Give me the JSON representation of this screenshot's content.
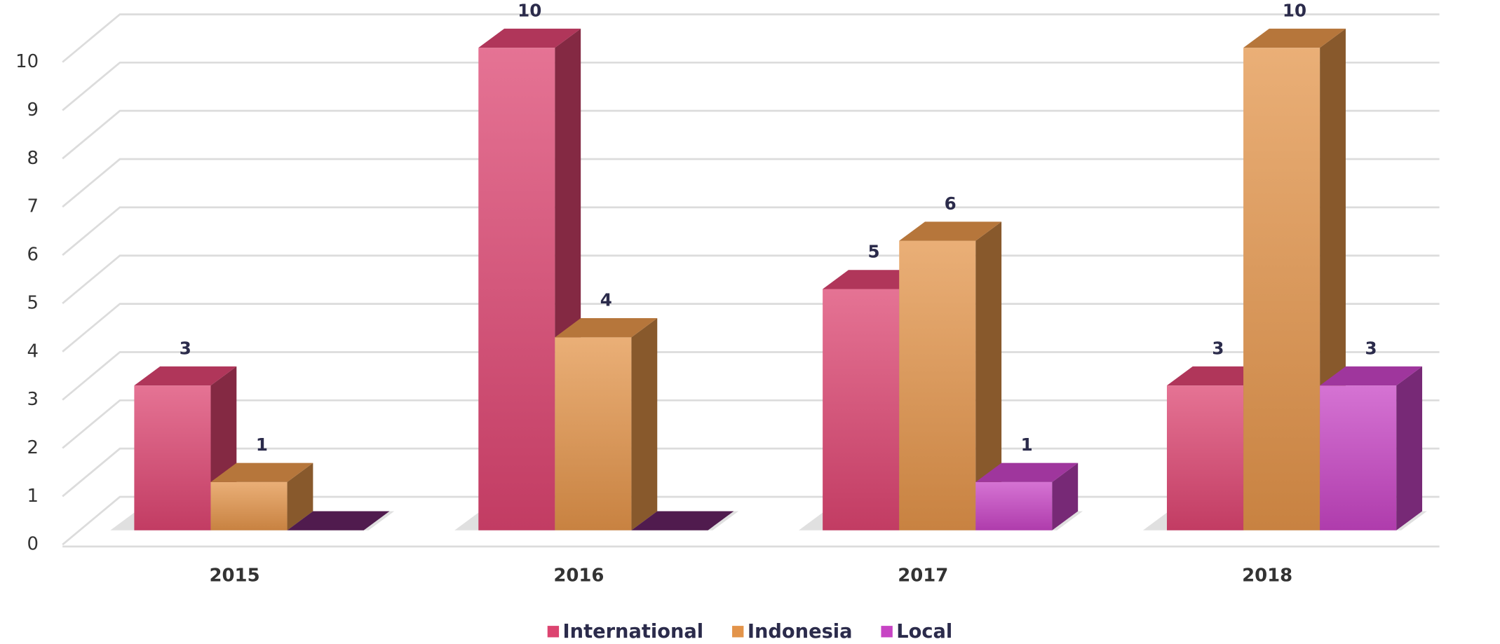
{
  "chart_data": {
    "type": "bar3d",
    "categories": [
      "2015",
      "2016",
      "2017",
      "2018"
    ],
    "series": [
      {
        "name": "International",
        "color": "#dc4470",
        "values": [
          3,
          10,
          5,
          3
        ]
      },
      {
        "name": "Indonesia",
        "color": "#e3944a",
        "values": [
          1,
          4,
          6,
          10
        ]
      },
      {
        "name": "Local",
        "color": "#c744c4",
        "values": [
          0,
          0,
          1,
          3
        ],
        "value_labels": [
          null,
          null,
          "1",
          "3"
        ]
      }
    ],
    "ylim": [
      0,
      10
    ],
    "yticks": [
      0,
      1,
      2,
      3,
      4,
      5,
      6,
      7,
      8,
      9,
      10
    ],
    "grid": true,
    "legend": "bottom"
  }
}
